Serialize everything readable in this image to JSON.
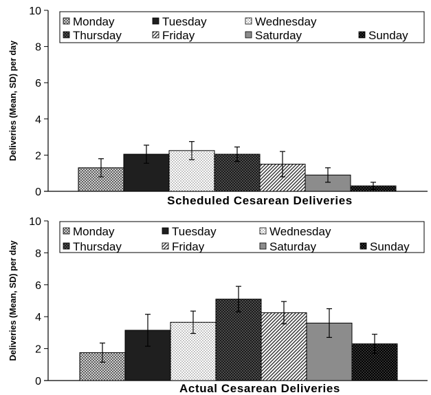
{
  "chart_data": [
    {
      "type": "bar",
      "title": "Scheduled Cesarean Deliveries",
      "xlabel": "Scheduled Cesarean Deliveries",
      "ylabel": "Deliveries (Mean, SD) per day",
      "ylim": [
        0,
        10
      ],
      "yticks": [
        "0",
        "2",
        "4",
        "6",
        "8",
        "10"
      ],
      "categories": [
        "Monday",
        "Tuesday",
        "Wednesday",
        "Thursday",
        "Friday",
        "Saturday",
        "Sunday"
      ],
      "values": [
        1.3,
        2.05,
        2.25,
        2.05,
        1.5,
        0.9,
        0.3
      ],
      "sd": [
        0.5,
        0.5,
        0.5,
        0.4,
        0.7,
        0.4,
        0.2
      ],
      "legend": [
        "Monday",
        "Tuesday",
        "Wednesday",
        "Thursday",
        "Friday",
        "Saturday",
        "Sunday"
      ],
      "legend_position": "top"
    },
    {
      "type": "bar",
      "title": "Actual Cesarean Deliveries",
      "xlabel": "Actual Cesarean Deliveries",
      "ylabel": "Deliveries (Mean, SD) per day",
      "ylim": [
        0,
        10
      ],
      "yticks": [
        "0",
        "2",
        "4",
        "6",
        "8",
        "10"
      ],
      "categories": [
        "Monday",
        "Tuesday",
        "Wednesday",
        "Thursday",
        "Friday",
        "Saturday",
        "Sunday"
      ],
      "values": [
        1.75,
        3.15,
        3.65,
        5.1,
        4.25,
        3.6,
        2.3
      ],
      "sd": [
        0.6,
        1.0,
        0.7,
        0.8,
        0.7,
        0.9,
        0.6
      ],
      "legend": [
        "Monday",
        "Tuesday",
        "Wednesday",
        "Thursday",
        "Friday",
        "Saturday",
        "Sunday"
      ],
      "legend_position": "top"
    }
  ]
}
